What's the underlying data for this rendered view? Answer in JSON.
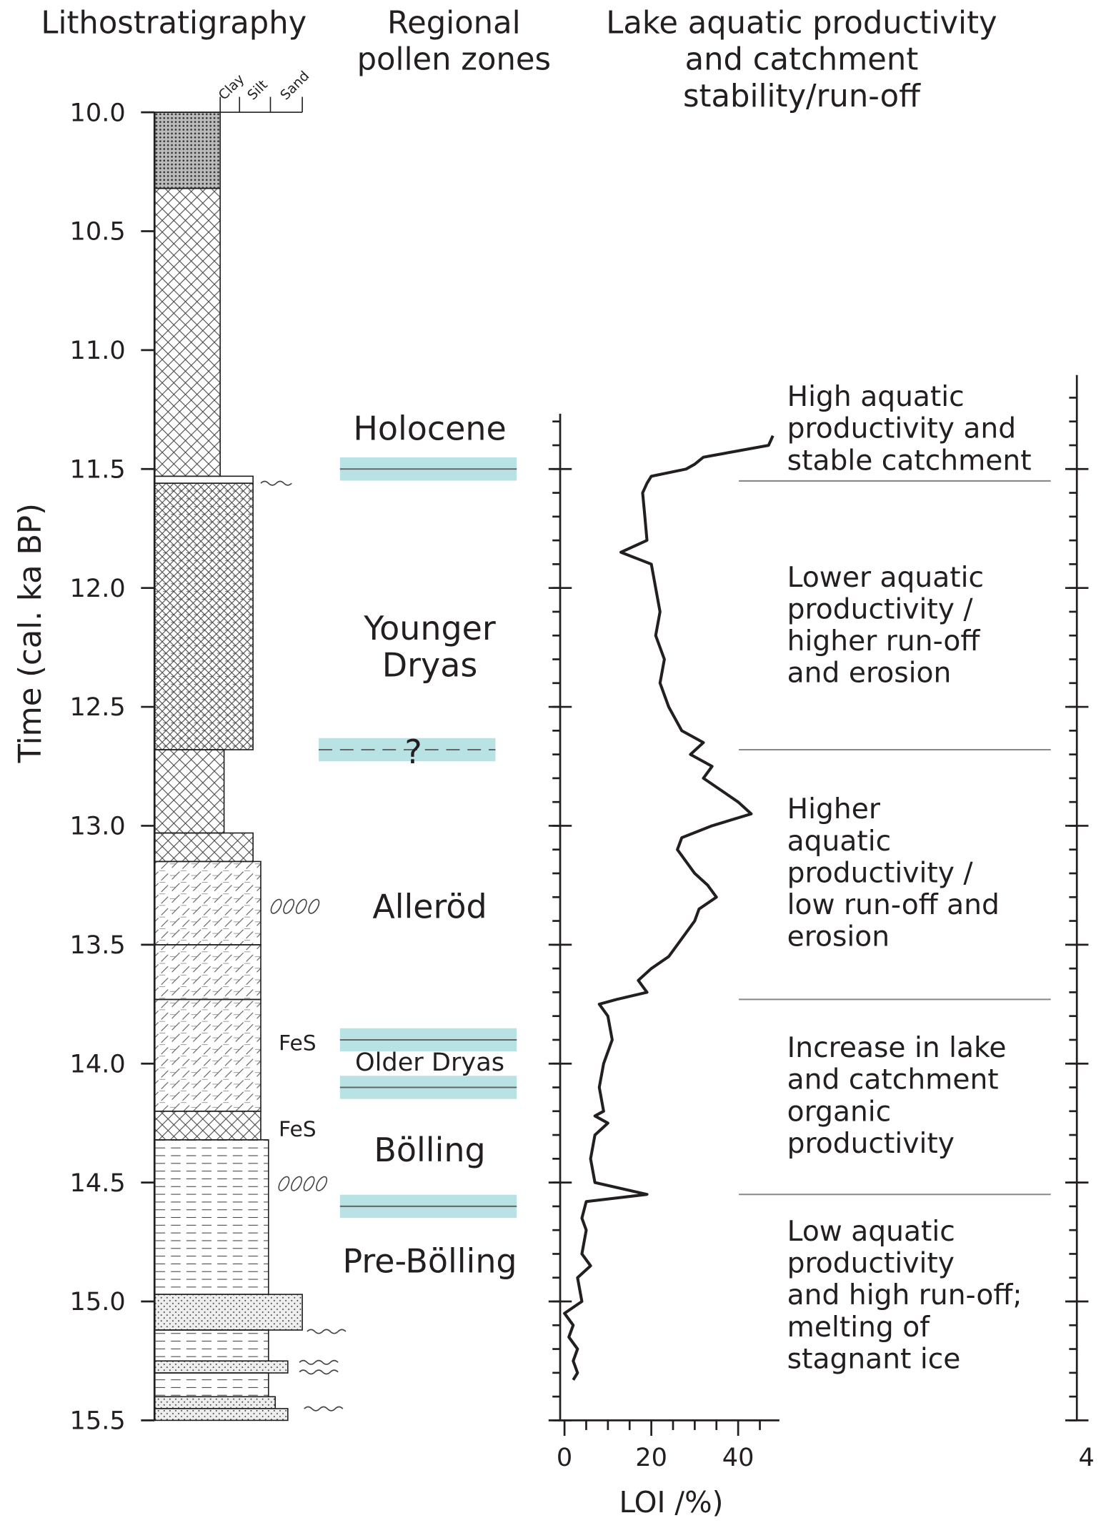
{
  "headers": {
    "lithostratigraphy": "Lithostratigraphy",
    "pollen": [
      "Regional",
      "pollen zones"
    ],
    "lake": [
      "Lake aquatic productivity",
      "and catchment",
      "stability/run-off"
    ]
  },
  "grain_labels": [
    "Clay",
    "Silt",
    "Sand"
  ],
  "annotations": [
    "FeS",
    "FeS"
  ],
  "pollen_zones": [
    {
      "lines": [
        "Holocene"
      ]
    },
    {
      "lines": [
        "Younger",
        "Dryas"
      ]
    },
    {
      "lines": [
        "Alleröd"
      ]
    },
    {
      "lines": [
        "Older Dryas"
      ]
    },
    {
      "lines": [
        "Bölling"
      ]
    },
    {
      "lines": [
        "Pre-Bölling"
      ]
    }
  ],
  "pollen_boundaries": [
    {
      "value": 11.5
    },
    {
      "value": 12.68,
      "label": "?"
    },
    {
      "value": 13.9
    },
    {
      "value": 14.1
    },
    {
      "value": 14.6
    }
  ],
  "band_color": "#a6dbdd",
  "interpretations": [
    {
      "lines": [
        "High aquatic",
        "productivity and",
        "stable catchment"
      ]
    },
    {
      "lines": [
        "Lower aquatic",
        "productivity /",
        "higher run-off",
        "and erosion"
      ]
    },
    {
      "lines": [
        "Higher",
        "aquatic",
        "productivity /",
        "low run-off and",
        "erosion"
      ]
    },
    {
      "lines": [
        "Increase in lake",
        "and catchment",
        "organic",
        "productivity"
      ]
    },
    {
      "lines": [
        "Low aquatic",
        "productivity",
        "and high run-off;",
        "melting of",
        "stagnant ice"
      ]
    }
  ],
  "interpretation_boundaries": [
    11.55,
    12.68,
    13.73,
    14.55
  ],
  "right_axis_label": "4",
  "chart_data": {
    "type": "line",
    "y_label": "Time (cal. ka BP)",
    "x_label": "LOI /%)",
    "ylim": [
      10,
      15.5
    ],
    "yticks": [
      {
        "value": 10,
        "label": "10.0"
      },
      10.5,
      {
        "value": 11,
        "label": "11.0"
      },
      11.5,
      {
        "value": 12,
        "label": "12.0"
      },
      12.5,
      {
        "value": 13,
        "label": "13.0"
      },
      13.5,
      {
        "value": 14,
        "label": "14.0"
      },
      14.5,
      {
        "value": 15,
        "label": "15.0"
      },
      15.5
    ],
    "yminor_step": 0.1,
    "xlim": [
      -1,
      49.5
    ],
    "xticks": [
      0,
      20,
      40
    ],
    "xticks_minor": [
      5,
      10,
      15,
      25,
      30,
      35,
      45
    ],
    "color": "#231f20",
    "x": [
      11.36,
      11.4,
      11.45,
      11.48,
      11.5,
      11.53,
      11.56,
      11.6,
      11.7,
      11.8,
      11.85,
      11.9,
      12.0,
      12.1,
      12.2,
      12.3,
      12.4,
      12.5,
      12.6,
      12.65,
      12.7,
      12.75,
      12.8,
      12.9,
      12.95,
      13.0,
      13.05,
      13.1,
      13.2,
      13.25,
      13.3,
      13.35,
      13.4,
      13.5,
      13.55,
      13.6,
      13.65,
      13.7,
      13.73,
      13.75,
      13.8,
      13.9,
      14.0,
      14.1,
      14.2,
      14.22,
      14.25,
      14.3,
      14.4,
      14.5,
      14.55,
      14.58,
      14.65,
      14.7,
      14.8,
      14.85,
      14.9,
      15.0,
      15.05,
      15.1,
      15.15,
      15.2,
      15.25,
      15.3,
      15.33
    ],
    "values": [
      48,
      47,
      32,
      30,
      28,
      20,
      19,
      18,
      18.5,
      19,
      13,
      20,
      21,
      22,
      21,
      23,
      22,
      24,
      27,
      32,
      29,
      34,
      32,
      40,
      43,
      34,
      27,
      26,
      30,
      33,
      35,
      31,
      30,
      26,
      24,
      20,
      17,
      19,
      12,
      8,
      10,
      11,
      9,
      8,
      9,
      7,
      10,
      7,
      6,
      7,
      19,
      5,
      4,
      5,
      4,
      6,
      3,
      4,
      0,
      2,
      1,
      3,
      2,
      3,
      2
    ]
  }
}
